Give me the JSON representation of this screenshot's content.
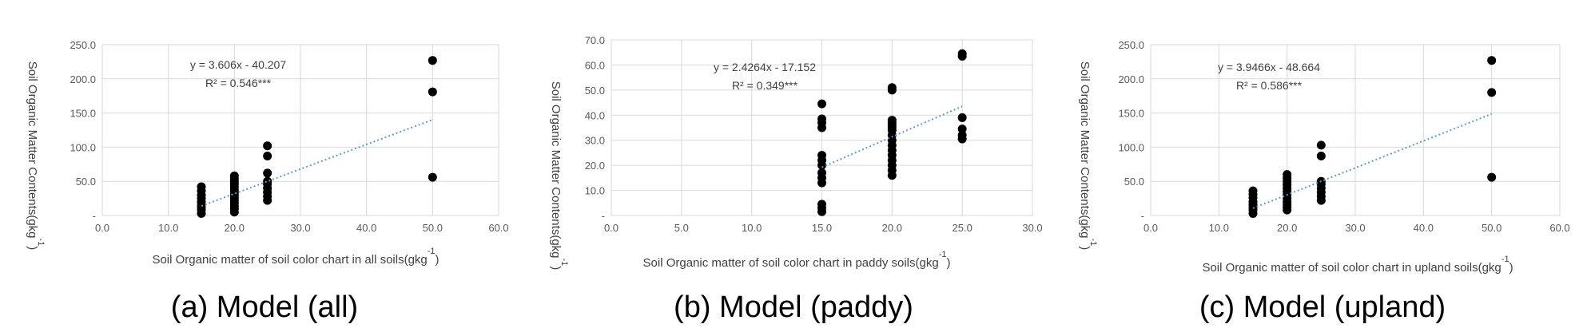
{
  "chart_data": [
    {
      "type": "scatter",
      "caption": "(a) Model (all)",
      "xlabel": "Soil Organic matter of soil color chart in all soils(gkg",
      "xlabel_sup": "-1",
      "xlabel_tail": ")",
      "ylabel": "Soil Organic Matter Contents(gkg",
      "ylabel_sup": "-1",
      "ylabel_tail": ")",
      "xlim": [
        0,
        60
      ],
      "ylim": [
        0,
        250
      ],
      "xticks": [
        0,
        10,
        20,
        30,
        40,
        50,
        60
      ],
      "xtick_labels": [
        "0.0",
        "10.0",
        "20.0",
        "30.0",
        "40.0",
        "50.0",
        "60.0"
      ],
      "yticks": [
        0,
        50,
        100,
        150,
        200,
        250
      ],
      "ytick_labels": [
        "-",
        "50.0",
        "100.0",
        "150.0",
        "200.0",
        "250.0"
      ],
      "grid": true,
      "equation": "y = 3.606x - 40.207",
      "r2": "R² = 0.546***",
      "trendline": {
        "slope": 3.606,
        "intercept": -40.207,
        "x_range": [
          15,
          50
        ],
        "color": "#5b9bd5"
      },
      "points": [
        [
          15,
          3
        ],
        [
          15,
          8
        ],
        [
          15,
          12
        ],
        [
          15,
          16
        ],
        [
          15,
          20
        ],
        [
          15,
          25
        ],
        [
          15,
          30
        ],
        [
          15,
          36
        ],
        [
          15,
          42
        ],
        [
          20,
          5
        ],
        [
          20,
          10
        ],
        [
          20,
          14
        ],
        [
          20,
          18
        ],
        [
          20,
          22
        ],
        [
          20,
          26
        ],
        [
          20,
          30
        ],
        [
          20,
          34
        ],
        [
          20,
          38
        ],
        [
          20,
          42
        ],
        [
          20,
          46
        ],
        [
          20,
          50
        ],
        [
          20,
          54
        ],
        [
          20,
          58
        ],
        [
          25,
          22
        ],
        [
          25,
          28
        ],
        [
          25,
          34
        ],
        [
          25,
          40
        ],
        [
          25,
          46
        ],
        [
          25,
          50
        ],
        [
          25,
          62
        ],
        [
          25,
          87
        ],
        [
          25,
          102
        ],
        [
          50,
          56
        ],
        [
          50,
          181
        ],
        [
          50,
          227
        ]
      ]
    },
    {
      "type": "scatter",
      "caption": "(b) Model (paddy)",
      "xlabel": "Soil Organic matter of soil color chart in paddy soils(gkg",
      "xlabel_sup": "-1",
      "xlabel_tail": ")",
      "ylabel": "Soil Organic Matter Contents(gkg",
      "ylabel_sup": "-1",
      "ylabel_tail": ")",
      "xlim": [
        0,
        30
      ],
      "ylim": [
        0,
        70
      ],
      "xticks": [
        0,
        5,
        10,
        15,
        20,
        25,
        30
      ],
      "xtick_labels": [
        "0.0",
        "5.0",
        "10.0",
        "15.0",
        "20.0",
        "25.0",
        "30.0"
      ],
      "yticks": [
        0,
        10,
        20,
        30,
        40,
        50,
        60,
        70
      ],
      "ytick_labels": [
        "-",
        "10.0",
        "20.0",
        "30.0",
        "40.0",
        "50.0",
        "60.0",
        "70.0"
      ],
      "grid": true,
      "equation": "y = 2.4264x - 17.152",
      "r2": "R² = 0.349***",
      "trendline": {
        "slope": 2.4264,
        "intercept": -17.152,
        "x_range": [
          15,
          25
        ],
        "color": "#5b9bd5"
      },
      "points": [
        [
          15,
          1.5
        ],
        [
          15,
          3
        ],
        [
          15,
          4.5
        ],
        [
          15,
          13
        ],
        [
          15,
          15
        ],
        [
          15,
          17
        ],
        [
          15,
          20
        ],
        [
          15,
          22
        ],
        [
          15,
          24
        ],
        [
          15,
          35
        ],
        [
          15,
          37
        ],
        [
          15,
          38.5
        ],
        [
          15,
          44.5
        ],
        [
          20,
          16
        ],
        [
          20,
          18
        ],
        [
          20,
          20
        ],
        [
          20,
          22
        ],
        [
          20,
          24
        ],
        [
          20,
          26
        ],
        [
          20,
          28
        ],
        [
          20,
          30
        ],
        [
          20,
          32
        ],
        [
          20,
          34
        ],
        [
          20,
          35
        ],
        [
          20,
          36
        ],
        [
          20,
          37
        ],
        [
          20,
          38
        ],
        [
          20,
          50
        ],
        [
          20,
          51
        ],
        [
          25,
          30.5
        ],
        [
          25,
          32
        ],
        [
          25,
          34.5
        ],
        [
          25,
          39
        ],
        [
          25,
          63.5
        ],
        [
          25,
          64.5
        ]
      ]
    },
    {
      "type": "scatter",
      "caption": "(c) Model (upland)",
      "xlabel": "Soil Organic matter of soil color chart in upland soils(gkg",
      "xlabel_sup": "-1",
      "xlabel_tail": ")",
      "ylabel": "Soil Organic Matter Contents(gkg",
      "ylabel_sup": "-1",
      "ylabel_tail": ")",
      "xlim": [
        0,
        60
      ],
      "ylim": [
        0,
        250
      ],
      "xticks": [
        0,
        10,
        20,
        30,
        40,
        50,
        60
      ],
      "xtick_labels": [
        "0.0",
        "10.0",
        "20.0",
        "30.0",
        "40.0",
        "50.0",
        "60.0"
      ],
      "yticks": [
        0,
        50,
        100,
        150,
        200,
        250
      ],
      "ytick_labels": [
        "-",
        "50.0",
        "100.0",
        "150.0",
        "200.0",
        "250.0"
      ],
      "grid": true,
      "equation": "y = 3.9466x - 48.664",
      "r2": "R² = 0.586***",
      "trendline": {
        "slope": 3.9466,
        "intercept": -48.664,
        "x_range": [
          15,
          50
        ],
        "color": "#5b9bd5"
      },
      "points": [
        [
          15,
          3
        ],
        [
          15,
          8
        ],
        [
          15,
          12
        ],
        [
          15,
          16
        ],
        [
          15,
          20
        ],
        [
          15,
          26
        ],
        [
          15,
          31
        ],
        [
          15,
          36
        ],
        [
          20,
          8
        ],
        [
          20,
          12
        ],
        [
          20,
          16
        ],
        [
          20,
          20
        ],
        [
          20,
          25
        ],
        [
          20,
          30
        ],
        [
          20,
          35
        ],
        [
          20,
          40
        ],
        [
          20,
          45
        ],
        [
          20,
          50
        ],
        [
          20,
          55
        ],
        [
          20,
          60
        ],
        [
          25,
          22
        ],
        [
          25,
          28
        ],
        [
          25,
          34
        ],
        [
          25,
          40
        ],
        [
          25,
          46
        ],
        [
          25,
          50
        ],
        [
          25,
          87
        ],
        [
          25,
          103
        ],
        [
          50,
          56
        ],
        [
          50,
          180
        ],
        [
          50,
          227
        ]
      ]
    }
  ]
}
